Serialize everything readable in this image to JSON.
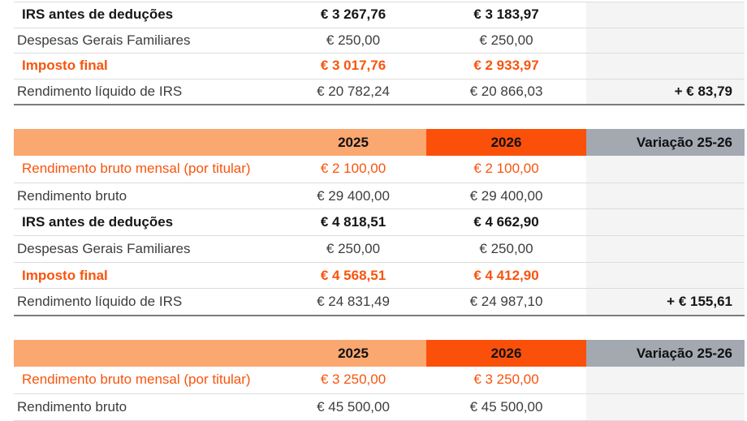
{
  "header": {
    "year1": "2025",
    "year2": "2026",
    "variation": "Variação 25-26"
  },
  "colors": {
    "header_light_orange": "#FAA770",
    "header_dark_orange": "#FB500A",
    "header_gray": "#A3A8B1",
    "accent_orange_text": "#F8540E",
    "variation_cell_bg": "#F4F4F5",
    "row_separator": "#DCDCDC",
    "table_bottom_border": "#7A7C7E",
    "body_text": "#3D3D3D",
    "emphasis_text": "#161616"
  },
  "tables": [
    {
      "name": "irs-comparison-table-partial-top",
      "rows": [
        {
          "label": "IRS antes de deduções",
          "v2025": "€ 3 267,76",
          "v2026": "€ 3 183,97",
          "variation": ""
        },
        {
          "label": "Despesas Gerais Familiares",
          "v2025": "€ 250,00",
          "v2026": "€ 250,00",
          "variation": ""
        },
        {
          "label": "Imposto final",
          "v2025": "€ 3 017,76",
          "v2026": "€ 2 933,97",
          "variation": ""
        },
        {
          "label": "Rendimento líquido de IRS",
          "v2025": "€ 20 782,24",
          "v2026": "€ 20 866,03",
          "variation": "+ € 83,79"
        }
      ]
    },
    {
      "name": "irs-comparison-table-2100",
      "rows": [
        {
          "label": "Rendimento bruto mensal (por titular)",
          "v2025": "€ 2 100,00",
          "v2026": "€ 2 100,00",
          "variation": ""
        },
        {
          "label": "Rendimento bruto",
          "v2025": "€ 29 400,00",
          "v2026": "€ 29 400,00",
          "variation": ""
        },
        {
          "label": "IRS antes de deduções",
          "v2025": "€ 4 818,51",
          "v2026": "€ 4 662,90",
          "variation": ""
        },
        {
          "label": "Despesas Gerais Familiares",
          "v2025": "€ 250,00",
          "v2026": "€ 250,00",
          "variation": ""
        },
        {
          "label": "Imposto final",
          "v2025": "€ 4 568,51",
          "v2026": "€ 4 412,90",
          "variation": ""
        },
        {
          "label": "Rendimento líquido de IRS",
          "v2025": "€ 24 831,49",
          "v2026": "€ 24 987,10",
          "variation": "+ € 155,61"
        }
      ]
    },
    {
      "name": "irs-comparison-table-3250-partial-bottom",
      "rows": [
        {
          "label": "Rendimento bruto mensal (por titular)",
          "v2025": "€ 3 250,00",
          "v2026": "€ 3 250,00",
          "variation": ""
        },
        {
          "label": "Rendimento bruto",
          "v2025": "€ 45 500,00",
          "v2026": "€ 45 500,00",
          "variation": ""
        }
      ]
    }
  ]
}
